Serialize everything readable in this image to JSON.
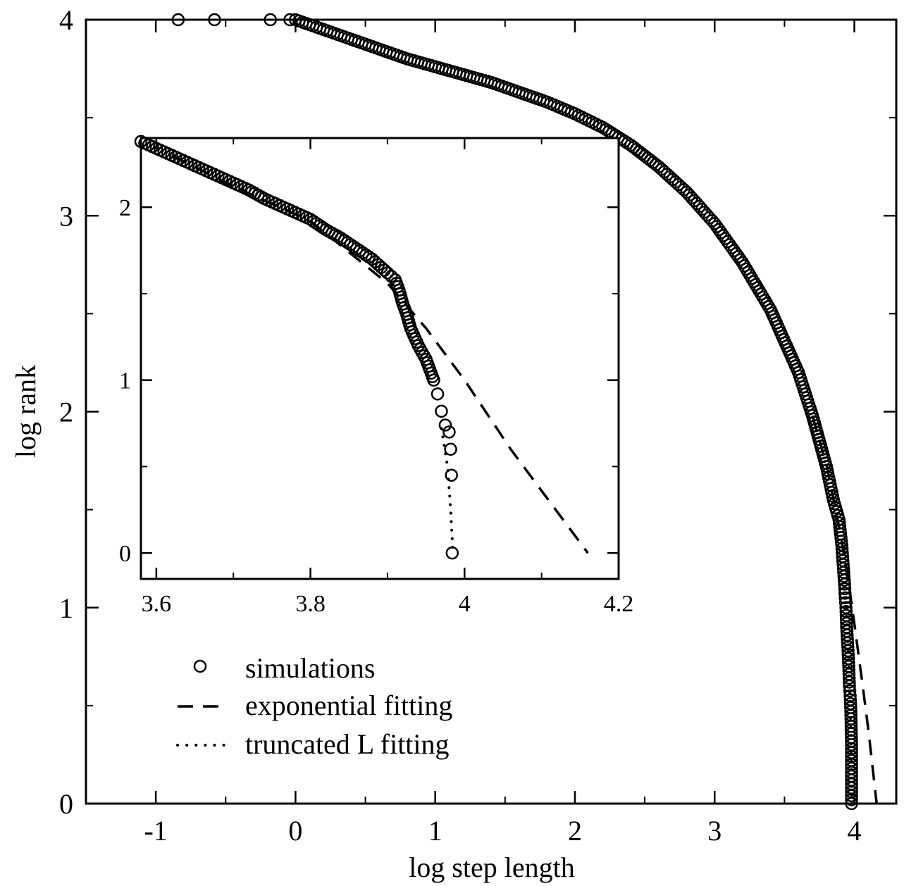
{
  "chart_data": [
    {
      "type": "scatter",
      "xlabel": "log step length",
      "ylabel": "log rank",
      "xlim": [
        -1.5,
        4.3
      ],
      "ylim": [
        0,
        4
      ],
      "xticks": [
        -1,
        0,
        1,
        2,
        3,
        4
      ],
      "xtick_labels": [
        "-1",
        "0",
        "1",
        "2",
        "3",
        "4"
      ],
      "yticks": [
        0,
        1,
        2,
        3,
        4
      ],
      "ytick_labels": [
        "0",
        "1",
        "2",
        "3",
        "4"
      ],
      "grid": false,
      "legend": {
        "placement": "lower-left",
        "entries": [
          {
            "label": "simulations",
            "marker": "open-circle"
          },
          {
            "label": "exponential fitting",
            "line": "dashed"
          },
          {
            "label": "truncated L fitting",
            "line": "dotted"
          }
        ]
      },
      "series": [
        {
          "name": "simulations",
          "kind": "markers",
          "x": [
            -0.84,
            -0.58,
            -0.18,
            -0.04,
            0.0,
            0.2,
            0.4,
            0.6,
            0.8,
            1.0,
            1.2,
            1.4,
            1.6,
            1.8,
            2.0,
            2.2,
            2.4,
            2.6,
            2.8,
            3.0,
            3.2,
            3.4,
            3.6,
            3.7,
            3.8,
            3.85,
            3.89,
            3.91,
            3.92,
            3.93,
            3.935,
            3.94,
            3.945,
            3.95,
            3.955,
            3.96,
            3.965,
            3.97,
            3.975,
            3.98,
            3.98,
            3.98,
            3.98
          ],
          "y": [
            4.0,
            4.0,
            4.0,
            4.0,
            4.0,
            3.95,
            3.9,
            3.85,
            3.8,
            3.76,
            3.72,
            3.68,
            3.63,
            3.58,
            3.52,
            3.45,
            3.36,
            3.25,
            3.12,
            2.96,
            2.76,
            2.52,
            2.2,
            1.98,
            1.72,
            1.55,
            1.45,
            1.32,
            1.22,
            1.12,
            1.05,
            1.0,
            0.9,
            0.84,
            0.78,
            0.7,
            0.6,
            0.55,
            0.47,
            0.3,
            0.2,
            0.1,
            0.0
          ]
        },
        {
          "name": "exponential fitting",
          "kind": "dashed-line",
          "x": [
            3.7,
            3.8,
            3.9,
            3.96,
            4.0,
            4.06,
            4.1,
            4.16
          ],
          "y": [
            1.98,
            1.73,
            1.38,
            1.12,
            0.92,
            0.6,
            0.38,
            0.0
          ]
        },
        {
          "name": "truncated L fitting",
          "kind": "dotted-line",
          "x": [
            3.94,
            3.96,
            3.97,
            3.975,
            3.98,
            3.982
          ],
          "y": [
            1.0,
            0.72,
            0.52,
            0.35,
            0.15,
            0.0
          ]
        }
      ]
    },
    {
      "type": "scatter",
      "role": "inset",
      "xlim": [
        3.58,
        4.2
      ],
      "ylim": [
        -0.15,
        2.4
      ],
      "xticks": [
        3.6,
        3.8,
        4.0,
        4.2
      ],
      "xtick_labels": [
        "3.6",
        "3.8",
        "4",
        "4.2"
      ],
      "yticks": [
        0,
        1,
        2
      ],
      "ytick_labels": [
        "0",
        "1",
        "2"
      ],
      "grid": false,
      "series": [
        {
          "name": "simulations",
          "kind": "markers",
          "x": [
            3.58,
            3.59,
            3.6,
            3.62,
            3.64,
            3.66,
            3.68,
            3.7,
            3.72,
            3.74,
            3.76,
            3.78,
            3.8,
            3.82,
            3.84,
            3.86,
            3.88,
            3.9,
            3.91,
            3.915,
            3.92,
            3.925,
            3.93,
            3.94,
            3.95,
            3.955,
            3.96,
            3.965,
            3.97,
            3.975,
            3.98,
            3.982,
            3.983,
            3.984
          ],
          "y": [
            2.38,
            2.36,
            2.34,
            2.3,
            2.26,
            2.22,
            2.18,
            2.14,
            2.1,
            2.05,
            2.01,
            1.97,
            1.93,
            1.87,
            1.82,
            1.76,
            1.7,
            1.62,
            1.58,
            1.52,
            1.44,
            1.38,
            1.3,
            1.2,
            1.12,
            1.06,
            1.0,
            0.92,
            0.82,
            0.74,
            0.7,
            0.6,
            0.45,
            0.0
          ]
        },
        {
          "name": "exponential fitting",
          "kind": "dashed-line",
          "x": [
            3.62,
            3.7,
            3.8,
            3.9,
            3.95,
            4.0,
            4.06,
            4.1,
            4.16
          ],
          "y": [
            2.3,
            2.12,
            1.92,
            1.56,
            1.3,
            1.0,
            0.6,
            0.36,
            0.0
          ]
        },
        {
          "name": "truncated L fitting",
          "kind": "dotted-line",
          "x": [
            3.97,
            3.978,
            3.982,
            3.985
          ],
          "y": [
            0.72,
            0.5,
            0.25,
            0.0
          ]
        }
      ]
    }
  ]
}
